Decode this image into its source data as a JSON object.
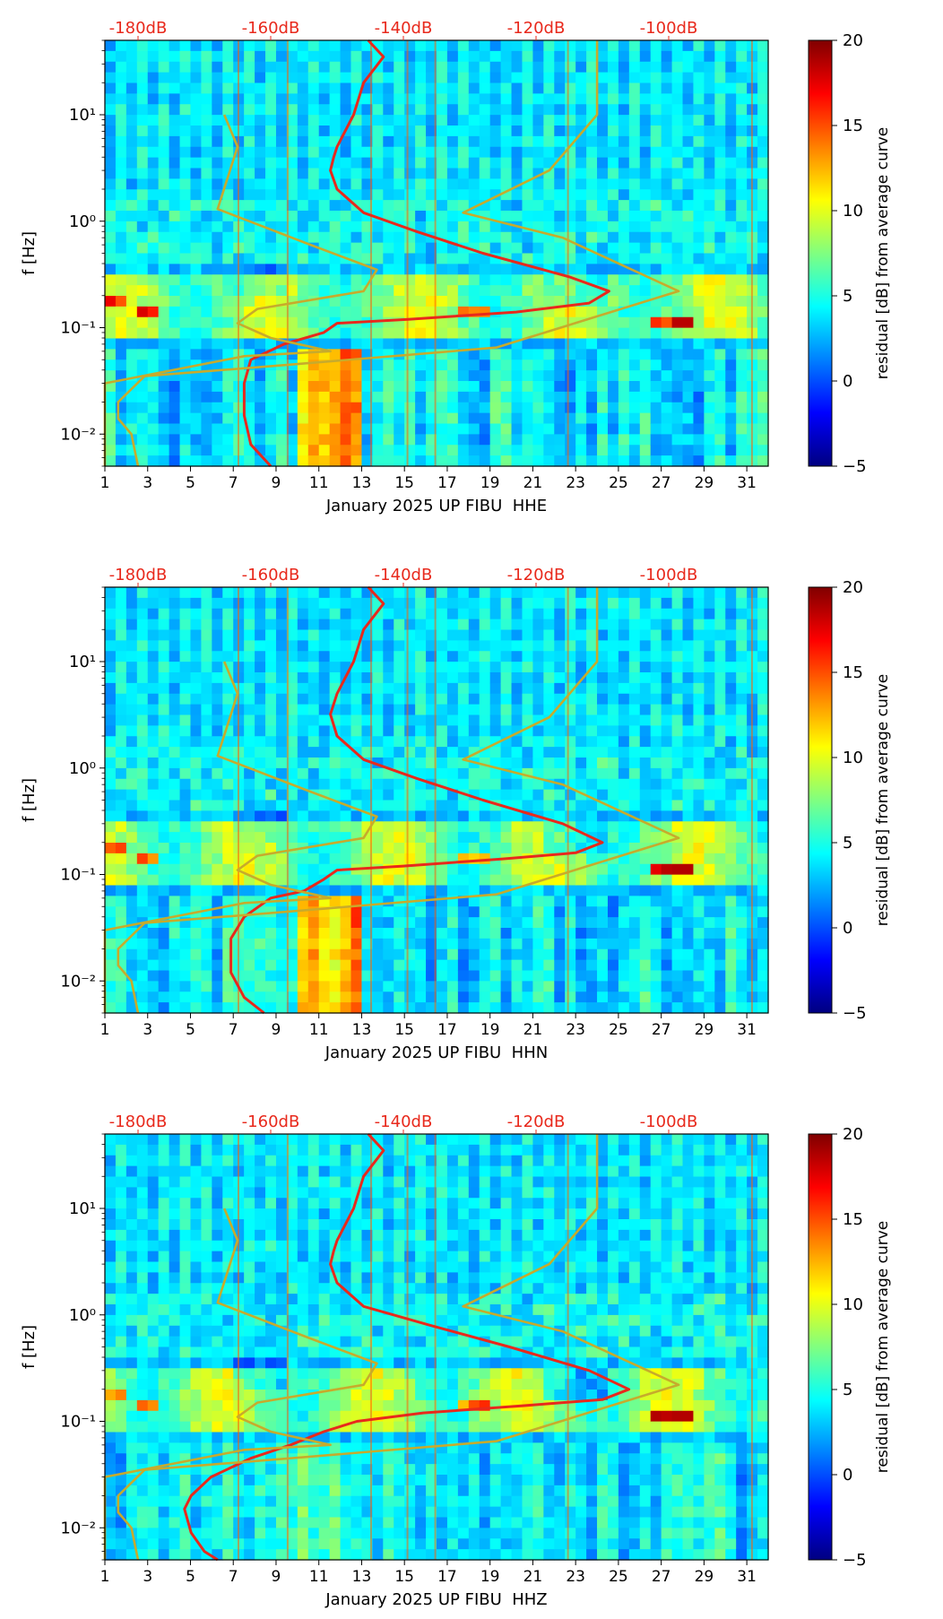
{
  "chart_data": [
    {
      "type": "heatmap",
      "title": "",
      "xlabel": "January 2025 UP FIBU  HHE",
      "ylabel": "f [Hz]",
      "x_ticks": [
        1,
        3,
        5,
        7,
        9,
        11,
        13,
        15,
        17,
        19,
        21,
        23,
        25,
        27,
        29,
        31
      ],
      "xlim": [
        1,
        32
      ],
      "ylim": [
        0.005,
        50
      ],
      "y_scale": "log",
      "y_ticks": [
        {
          "value": 10,
          "label": "10¹"
        },
        {
          "value": 1,
          "label": "10⁰"
        },
        {
          "value": 0.1,
          "label": "10⁻¹"
        },
        {
          "value": 0.01,
          "label": "10⁻²"
        }
      ],
      "top_axis": {
        "labels": [
          "-180dB",
          "-160dB",
          "-140dB",
          "-120dB",
          "-100dB"
        ],
        "values": [
          -180,
          -160,
          -140,
          -120,
          -100
        ],
        "range": [
          -185,
          -85
        ],
        "color": "#e8291c"
      },
      "colorbar": {
        "label": "residual [dB] from average curve",
        "range": [
          -5,
          20
        ],
        "ticks": [
          20,
          15,
          10,
          5,
          0,
          -5
        ],
        "tick_labels": [
          "20",
          "15",
          "10",
          "5",
          "0",
          "−5"
        ],
        "colormap": "jet"
      },
      "series": [
        {
          "name": "average PSD",
          "color": "#e8291c",
          "points": [
            [
              -145.3,
              50
            ],
            [
              -143,
              35
            ],
            [
              -146,
              20
            ],
            [
              -147.5,
              10
            ],
            [
              -150,
              5
            ],
            [
              -150.5,
              4
            ],
            [
              -151,
              3
            ],
            [
              -150,
              2
            ],
            [
              -146,
              1.2
            ],
            [
              -138,
              0.8
            ],
            [
              -128,
              0.5
            ],
            [
              -115,
              0.3
            ],
            [
              -109,
              0.22
            ],
            [
              -112,
              0.17
            ],
            [
              -123,
              0.14
            ],
            [
              -139,
              0.12
            ],
            [
              -150,
              0.11
            ],
            [
              -152,
              0.09
            ],
            [
              -158,
              0.07
            ],
            [
              -163,
              0.05
            ],
            [
              -164,
              0.03
            ],
            [
              -164,
              0.015
            ],
            [
              -163,
              0.008
            ],
            [
              -160,
              0.005
            ]
          ]
        },
        {
          "name": "NLNM",
          "color": "#c7ab2c",
          "points": [
            [
              -110.8,
              50
            ],
            [
              -110.8,
              10
            ],
            [
              -118,
              3
            ],
            [
              -131,
              1.2
            ],
            [
              -116,
              0.7
            ],
            [
              -98.5,
              0.22
            ],
            [
              -126,
              0.065
            ],
            [
              -157,
              0.045
            ],
            [
              -179,
              0.035
            ],
            [
              -183,
              0.02
            ],
            [
              -183,
              0.014
            ],
            [
              -181,
              0.01
            ],
            [
              -180,
              0.005
            ]
          ]
        },
        {
          "name": "NHNM",
          "color": "#c7ab2c",
          "points": [
            [
              -167,
              10
            ],
            [
              -165,
              5
            ],
            [
              -168,
              1.3
            ],
            [
              -154,
              0.6
            ],
            [
              -144,
              0.35
            ],
            [
              -146,
              0.22
            ],
            [
              -162,
              0.15
            ],
            [
              -165,
              0.11
            ],
            [
              -160,
              0.08
            ],
            [
              -151,
              0.06
            ],
            [
              -164,
              0.054
            ],
            [
              -185,
              0.03
            ],
            [
              -185,
              0.005
            ]
          ]
        }
      ]
    },
    {
      "type": "heatmap",
      "title": "",
      "xlabel": "January 2025 UP FIBU  HHN",
      "ylabel": "f [Hz]",
      "x_ticks": [
        1,
        3,
        5,
        7,
        9,
        11,
        13,
        15,
        17,
        19,
        21,
        23,
        25,
        27,
        29,
        31
      ],
      "xlim": [
        1,
        32
      ],
      "ylim": [
        0.005,
        50
      ],
      "y_scale": "log",
      "y_ticks": [
        {
          "value": 10,
          "label": "10¹"
        },
        {
          "value": 1,
          "label": "10⁰"
        },
        {
          "value": 0.1,
          "label": "10⁻¹"
        },
        {
          "value": 0.01,
          "label": "10⁻²"
        }
      ],
      "top_axis": {
        "labels": [
          "-180dB",
          "-160dB",
          "-140dB",
          "-120dB",
          "-100dB"
        ],
        "values": [
          -180,
          -160,
          -140,
          -120,
          -100
        ],
        "range": [
          -185,
          -85
        ],
        "color": "#e8291c"
      },
      "colorbar": {
        "label": "residual [dB] from average curve",
        "range": [
          -5,
          20
        ],
        "ticks": [
          20,
          15,
          10,
          5,
          0,
          -5
        ],
        "tick_labels": [
          "20",
          "15",
          "10",
          "5",
          "0",
          "−5"
        ],
        "colormap": "jet"
      },
      "series": [
        {
          "name": "average PSD",
          "color": "#e8291c",
          "points": [
            [
              -145.3,
              50
            ],
            [
              -143,
              35
            ],
            [
              -146,
              20
            ],
            [
              -147.5,
              10
            ],
            [
              -150,
              5
            ],
            [
              -150.5,
              4
            ],
            [
              -151,
              3.2
            ],
            [
              -150,
              2
            ],
            [
              -146,
              1.2
            ],
            [
              -138,
              0.8
            ],
            [
              -128,
              0.5
            ],
            [
              -116,
              0.3
            ],
            [
              -110,
              0.2
            ],
            [
              -114,
              0.16
            ],
            [
              -125,
              0.14
            ],
            [
              -140,
              0.12
            ],
            [
              -150,
              0.11
            ],
            [
              -152,
              0.09
            ],
            [
              -155,
              0.07
            ],
            [
              -160,
              0.06
            ],
            [
              -164,
              0.04
            ],
            [
              -166,
              0.025
            ],
            [
              -166,
              0.012
            ],
            [
              -164,
              0.007
            ],
            [
              -161,
              0.005
            ]
          ]
        },
        {
          "name": "NLNM",
          "color": "#c7ab2c",
          "points": [
            [
              -110.8,
              50
            ],
            [
              -110.8,
              10
            ],
            [
              -118,
              3
            ],
            [
              -131,
              1.2
            ],
            [
              -116,
              0.7
            ],
            [
              -98.5,
              0.22
            ],
            [
              -126,
              0.065
            ],
            [
              -157,
              0.045
            ],
            [
              -179,
              0.035
            ],
            [
              -183,
              0.02
            ],
            [
              -183,
              0.014
            ],
            [
              -181,
              0.01
            ],
            [
              -180,
              0.005
            ]
          ]
        },
        {
          "name": "NHNM",
          "color": "#c7ab2c",
          "points": [
            [
              -167,
              10
            ],
            [
              -165,
              5
            ],
            [
              -168,
              1.3
            ],
            [
              -154,
              0.6
            ],
            [
              -144,
              0.35
            ],
            [
              -146,
              0.22
            ],
            [
              -162,
              0.15
            ],
            [
              -165,
              0.11
            ],
            [
              -160,
              0.08
            ],
            [
              -151,
              0.06
            ],
            [
              -164,
              0.054
            ],
            [
              -185,
              0.03
            ],
            [
              -185,
              0.005
            ]
          ]
        }
      ]
    },
    {
      "type": "heatmap",
      "title": "",
      "xlabel": "January 2025 UP FIBU  HHZ",
      "ylabel": "f [Hz]",
      "x_ticks": [
        1,
        3,
        5,
        7,
        9,
        11,
        13,
        15,
        17,
        19,
        21,
        23,
        25,
        27,
        29,
        31
      ],
      "xlim": [
        1,
        32
      ],
      "ylim": [
        0.005,
        50
      ],
      "y_scale": "log",
      "y_ticks": [
        {
          "value": 10,
          "label": "10¹"
        },
        {
          "value": 1,
          "label": "10⁰"
        },
        {
          "value": 0.1,
          "label": "10⁻¹"
        },
        {
          "value": 0.01,
          "label": "10⁻²"
        }
      ],
      "top_axis": {
        "labels": [
          "-180dB",
          "-160dB",
          "-140dB",
          "-120dB",
          "-100dB"
        ],
        "values": [
          -180,
          -160,
          -140,
          -120,
          -100
        ],
        "range": [
          -185,
          -85
        ],
        "color": "#e8291c"
      },
      "colorbar": {
        "label": "residual [dB] from average curve",
        "range": [
          -5,
          20
        ],
        "ticks": [
          20,
          15,
          10,
          5,
          0,
          -5
        ],
        "tick_labels": [
          "20",
          "15",
          "10",
          "5",
          "0",
          "−5"
        ],
        "colormap": "jet"
      },
      "series": [
        {
          "name": "average PSD",
          "color": "#e8291c",
          "points": [
            [
              -145.3,
              50
            ],
            [
              -143,
              35
            ],
            [
              -146,
              20
            ],
            [
              -147.5,
              10
            ],
            [
              -150,
              5
            ],
            [
              -150.5,
              4
            ],
            [
              -151,
              3
            ],
            [
              -150,
              2
            ],
            [
              -146,
              1.2
            ],
            [
              -136,
              0.8
            ],
            [
              -124,
              0.5
            ],
            [
              -112,
              0.3
            ],
            [
              -106,
              0.2
            ],
            [
              -110,
              0.16
            ],
            [
              -122,
              0.14
            ],
            [
              -137,
              0.12
            ],
            [
              -147,
              0.1
            ],
            [
              -152,
              0.08
            ],
            [
              -157,
              0.06
            ],
            [
              -163,
              0.045
            ],
            [
              -169,
              0.03
            ],
            [
              -172,
              0.02
            ],
            [
              -173,
              0.015
            ],
            [
              -172,
              0.009
            ],
            [
              -170,
              0.006
            ],
            [
              -168,
              0.005
            ]
          ]
        },
        {
          "name": "NLNM",
          "color": "#c7ab2c",
          "points": [
            [
              -110.8,
              50
            ],
            [
              -110.8,
              10
            ],
            [
              -118,
              3
            ],
            [
              -131,
              1.2
            ],
            [
              -116,
              0.7
            ],
            [
              -98.5,
              0.22
            ],
            [
              -126,
              0.065
            ],
            [
              -157,
              0.045
            ],
            [
              -179,
              0.035
            ],
            [
              -183,
              0.02
            ],
            [
              -183,
              0.014
            ],
            [
              -181,
              0.01
            ],
            [
              -180,
              0.005
            ]
          ]
        },
        {
          "name": "NHNM",
          "color": "#c7ab2c",
          "points": [
            [
              -167,
              10
            ],
            [
              -165,
              5
            ],
            [
              -168,
              1.3
            ],
            [
              -154,
              0.6
            ],
            [
              -144,
              0.35
            ],
            [
              -146,
              0.22
            ],
            [
              -162,
              0.15
            ],
            [
              -165,
              0.11
            ],
            [
              -160,
              0.08
            ],
            [
              -151,
              0.06
            ],
            [
              -164,
              0.054
            ],
            [
              -185,
              0.03
            ],
            [
              -185,
              0.005
            ]
          ]
        }
      ]
    }
  ]
}
